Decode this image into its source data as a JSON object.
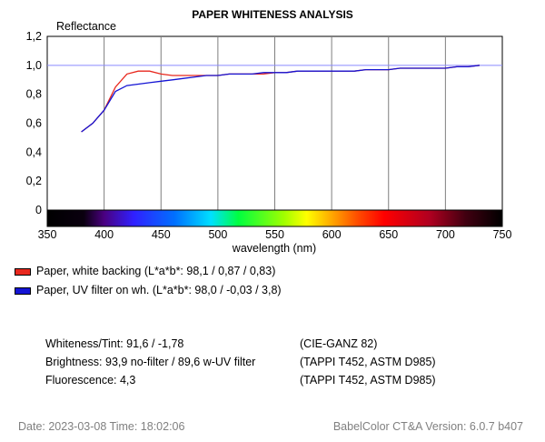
{
  "chart_data": {
    "type": "line",
    "title": "PAPER WHITENESS ANALYSIS",
    "ylabel": "Reflectance",
    "xlabel": "wavelength (nm)",
    "xlim": [
      350,
      750
    ],
    "ylim": [
      0,
      1.2
    ],
    "x_ticks": [
      "350",
      "400",
      "450",
      "500",
      "550",
      "600",
      "650",
      "700",
      "750"
    ],
    "y_ticks": [
      "0",
      "0,2",
      "0,4",
      "0,6",
      "0,8",
      "1,0",
      "1,2"
    ],
    "reference_line": 1.0,
    "grid": true,
    "series": [
      {
        "name": "Paper, white backing (L*a*b*: 98,1 / 0,87 / 0,83)",
        "color": "#e8281e",
        "points": [
          [
            380,
            0.54
          ],
          [
            390,
            0.6
          ],
          [
            400,
            0.69
          ],
          [
            410,
            0.85
          ],
          [
            420,
            0.94
          ],
          [
            430,
            0.96
          ],
          [
            440,
            0.96
          ],
          [
            450,
            0.94
          ],
          [
            460,
            0.93
          ],
          [
            470,
            0.93
          ],
          [
            480,
            0.93
          ],
          [
            490,
            0.93
          ],
          [
            500,
            0.93
          ],
          [
            510,
            0.94
          ],
          [
            520,
            0.94
          ],
          [
            530,
            0.94
          ],
          [
            540,
            0.94
          ],
          [
            550,
            0.95
          ],
          [
            560,
            0.95
          ],
          [
            570,
            0.96
          ],
          [
            580,
            0.96
          ],
          [
            590,
            0.96
          ],
          [
            600,
            0.96
          ],
          [
            610,
            0.96
          ],
          [
            620,
            0.96
          ],
          [
            630,
            0.97
          ],
          [
            640,
            0.97
          ],
          [
            650,
            0.97
          ],
          [
            660,
            0.98
          ],
          [
            670,
            0.98
          ],
          [
            680,
            0.98
          ],
          [
            690,
            0.98
          ],
          [
            700,
            0.98
          ],
          [
            710,
            0.99
          ],
          [
            720,
            0.99
          ],
          [
            730,
            1.0
          ]
        ]
      },
      {
        "name": "Paper, UV filter on wh. (L*a*b*: 98,0 / -0,03 / 3,8)",
        "color": "#1414d4",
        "points": [
          [
            380,
            0.54
          ],
          [
            390,
            0.6
          ],
          [
            400,
            0.69
          ],
          [
            410,
            0.82
          ],
          [
            420,
            0.86
          ],
          [
            430,
            0.87
          ],
          [
            440,
            0.88
          ],
          [
            450,
            0.89
          ],
          [
            460,
            0.9
          ],
          [
            470,
            0.91
          ],
          [
            480,
            0.92
          ],
          [
            490,
            0.93
          ],
          [
            500,
            0.93
          ],
          [
            510,
            0.94
          ],
          [
            520,
            0.94
          ],
          [
            530,
            0.94
          ],
          [
            540,
            0.95
          ],
          [
            550,
            0.95
          ],
          [
            560,
            0.95
          ],
          [
            570,
            0.96
          ],
          [
            580,
            0.96
          ],
          [
            590,
            0.96
          ],
          [
            600,
            0.96
          ],
          [
            610,
            0.96
          ],
          [
            620,
            0.96
          ],
          [
            630,
            0.97
          ],
          [
            640,
            0.97
          ],
          [
            650,
            0.97
          ],
          [
            660,
            0.98
          ],
          [
            670,
            0.98
          ],
          [
            680,
            0.98
          ],
          [
            690,
            0.98
          ],
          [
            700,
            0.98
          ],
          [
            710,
            0.99
          ],
          [
            720,
            0.99
          ],
          [
            730,
            1.0
          ]
        ]
      }
    ]
  },
  "legend": [
    {
      "label": "Paper, white backing (L*a*b*: 98,1 / 0,87 / 0,83)",
      "color": "#e8281e"
    },
    {
      "label": "Paper, UV filter on wh. (L*a*b*: 98,0 / -0,03 / 3,8)",
      "color": "#1414d4"
    }
  ],
  "info": {
    "whiteness": "Whiteness/Tint: 91,6 / -1,78",
    "whiteness_std": "(CIE-GANZ 82)",
    "brightness": "Brightness: 93,9 no-filter / 89,6 w-UV filter",
    "brightness_std": "(TAPPI T452, ASTM D985)",
    "fluorescence": "Fluorescence: 4,3",
    "fluorescence_std": "(TAPPI T452, ASTM D985)"
  },
  "footer": {
    "date": "Date: 2023-03-08   Time: 18:02:06",
    "version": "BabelColor CT&A Version: 6.0.7 b407"
  }
}
